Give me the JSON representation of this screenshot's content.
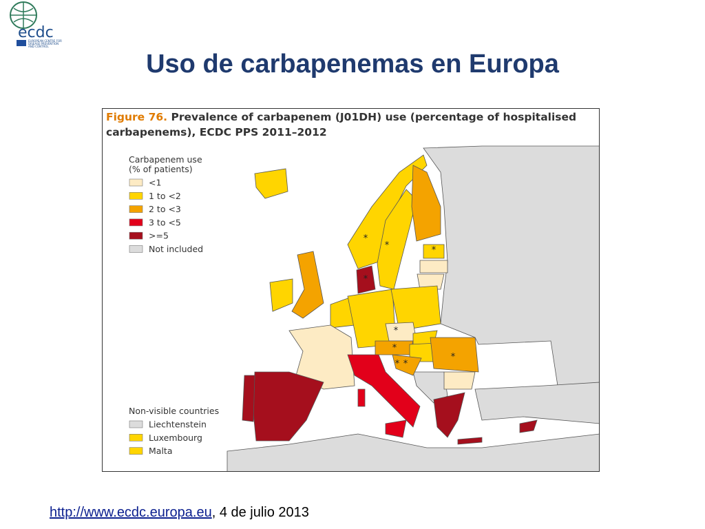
{
  "logo": {
    "name": "ecdc",
    "subtitle": [
      "EUROPEAN CENTRE FOR",
      "DISEASE PREVENTION",
      "AND CONTROL"
    ]
  },
  "title": "Uso de carbapenemas en Europa",
  "figure": {
    "label": "Figure 76.",
    "caption": [
      "Prevalence of carbapenem (J01DH) use (percentage of hospitalised",
      "carbapenems), ECDC PPS 2011–2012"
    ],
    "legend_title": [
      "Carbapenem use",
      "(% of patients)"
    ],
    "legend": [
      {
        "label": "<1",
        "color": "#fdebc4"
      },
      {
        "label": "1 to <2",
        "color": "#ffd500"
      },
      {
        "label": "2 to <3",
        "color": "#f4a300"
      },
      {
        "label": "3 to <5",
        "color": "#e2001a"
      },
      {
        "label": ">=5",
        "color": "#a50f1d"
      },
      {
        "label": "Not included",
        "color": "#dcdcdc"
      }
    ],
    "nonvisible_title": "Non-visible countries",
    "nonvisible": [
      {
        "label": "Liechtenstein",
        "color": "#dcdcdc"
      },
      {
        "label": "Luxembourg",
        "color": "#ffd500"
      },
      {
        "label": "Malta",
        "color": "#ffd500"
      }
    ],
    "asterisk": "*"
  },
  "footer": {
    "link": "http://www.ecdc.europa.eu",
    "text": ", 4 de julio 2013"
  }
}
